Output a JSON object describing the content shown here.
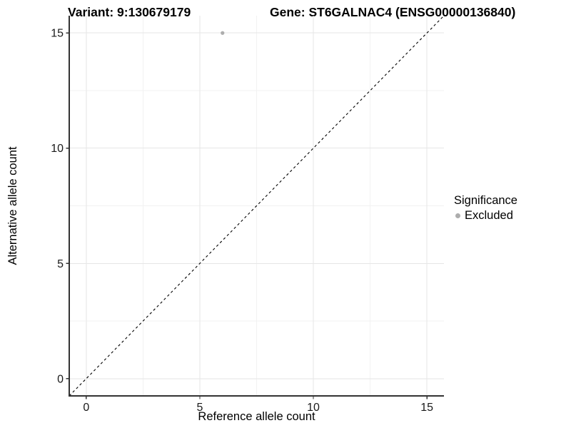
{
  "header": {
    "variant_title": "Variant: 9:130679179",
    "gene_title": "Gene: ST6GALNAC4 (ENSG00000136840)"
  },
  "chart_data": {
    "type": "scatter",
    "xlabel": "Reference allele count",
    "ylabel": "Alternative allele count",
    "x_ticks": [
      0,
      5,
      10,
      15
    ],
    "y_ticks": [
      0,
      5,
      10,
      15
    ],
    "x_minor_ticks": [
      2.5,
      7.5,
      12.5
    ],
    "y_minor_ticks": [
      2.5,
      7.5,
      12.5
    ],
    "xlim": [
      -0.75,
      15.75
    ],
    "ylim": [
      -0.75,
      15.75
    ],
    "grid": "major+minor",
    "points": [
      {
        "x": 6,
        "y": 15,
        "series": "Excluded"
      }
    ],
    "identity_line": {
      "type": "dashed",
      "slope": 1,
      "intercept": 0,
      "color": "#000000"
    },
    "legend": {
      "position": "right",
      "title": "Significance",
      "entries": [
        {
          "label": "Excluded",
          "color": "#adadad",
          "marker": "circle"
        }
      ]
    },
    "colors": {
      "background": "#ffffff",
      "grid_major": "#e6e6e6",
      "grid_minor": "#f2f2f2",
      "axis": "#333333",
      "tick_label": "#1a1a1a",
      "point": "#adadad"
    }
  }
}
